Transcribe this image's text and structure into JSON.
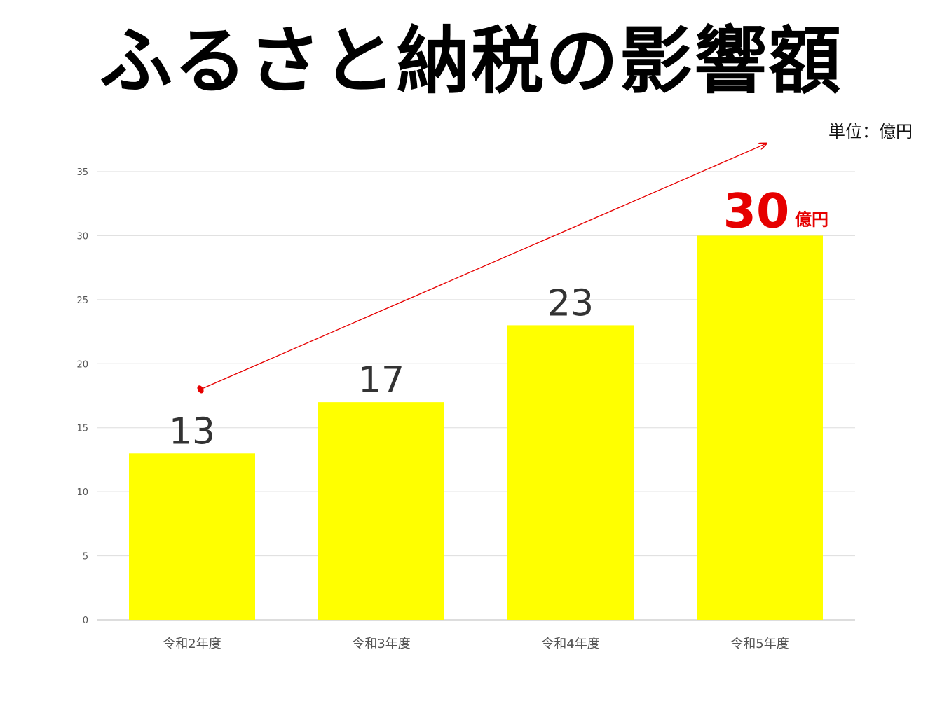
{
  "title": "ふるさと納税の影響額",
  "unit_label": "単位：億円",
  "colors": {
    "bar": "#ffff00",
    "highlight": "#e60000",
    "grid": "#dddddd",
    "value_text": "#333333",
    "axis_text": "#555555"
  },
  "chart_data": {
    "type": "bar",
    "categories": [
      "令和2年度",
      "令和3年度",
      "令和4年度",
      "令和5年度"
    ],
    "values": [
      13,
      17,
      23,
      30
    ],
    "value_labels": [
      "13",
      "17",
      "23",
      "30"
    ],
    "highlight_suffix": "億円",
    "ylim": [
      0,
      35
    ],
    "yticks": [
      0,
      5,
      10,
      15,
      20,
      25,
      30,
      35
    ],
    "grid": true,
    "trend_arrow": {
      "from": 18,
      "to": 36
    }
  }
}
